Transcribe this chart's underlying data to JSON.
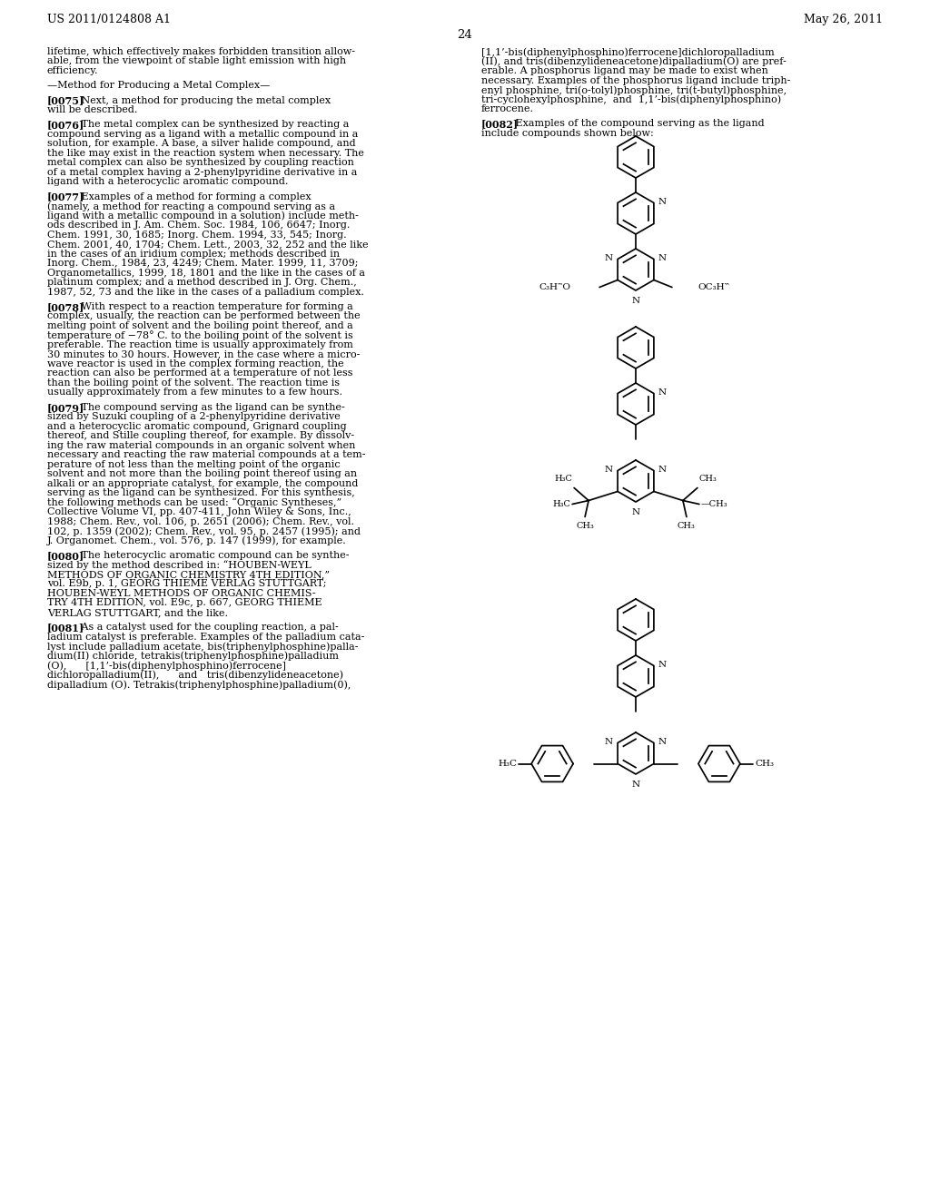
{
  "page_number": "24",
  "patent_number": "US 2011/0124808 A1",
  "patent_date": "May 26, 2011",
  "background_color": "#ffffff",
  "left_lines": [
    {
      "text": "lifetime, which effectively makes forbidden transition allow-",
      "bold": false,
      "indent": false
    },
    {
      "text": "able, from the viewpoint of stable light emission with high",
      "bold": false,
      "indent": false
    },
    {
      "text": "efficiency.",
      "bold": false,
      "indent": false
    },
    {
      "text": "",
      "bold": false,
      "indent": false
    },
    {
      "text": "—Method for Producing a Metal Complex—",
      "bold": false,
      "indent": false
    },
    {
      "text": "",
      "bold": false,
      "indent": false
    },
    {
      "text": "[0075]",
      "bold": true,
      "indent": false,
      "rest": "   Next, a method for producing the metal complex"
    },
    {
      "text": "will be described.",
      "bold": false,
      "indent": false
    },
    {
      "text": "",
      "bold": false,
      "indent": false
    },
    {
      "text": "[0076]",
      "bold": true,
      "indent": false,
      "rest": "   The metal complex can be synthesized by reacting a"
    },
    {
      "text": "compound serving as a ligand with a metallic compound in a",
      "bold": false,
      "indent": false
    },
    {
      "text": "solution, for example. A base, a silver halide compound, and",
      "bold": false,
      "indent": false
    },
    {
      "text": "the like may exist in the reaction system when necessary. The",
      "bold": false,
      "indent": false
    },
    {
      "text": "metal complex can also be synthesized by coupling reaction",
      "bold": false,
      "indent": false
    },
    {
      "text": "of a metal complex having a 2-phenylpyridine derivative in a",
      "bold": false,
      "indent": false
    },
    {
      "text": "ligand with a heterocyclic aromatic compound.",
      "bold": false,
      "indent": false
    },
    {
      "text": "",
      "bold": false,
      "indent": false
    },
    {
      "text": "[0077]",
      "bold": true,
      "indent": false,
      "rest": "   Examples of a method for forming a complex"
    },
    {
      "text": "(namely, a method for reacting a compound serving as a",
      "bold": false,
      "indent": false
    },
    {
      "text": "ligand with a metallic compound in a solution) include meth-",
      "bold": false,
      "indent": false
    },
    {
      "text": "ods described in J. Am. Chem. Soc. 1984, 106, 6647; Inorg.",
      "bold": false,
      "indent": false
    },
    {
      "text": "Chem. 1991, 30, 1685; Inorg. Chem. 1994, 33, 545; Inorg.",
      "bold": false,
      "indent": false
    },
    {
      "text": "Chem. 2001, 40, 1704; Chem. Lett., 2003, 32, 252 and the like",
      "bold": false,
      "indent": false
    },
    {
      "text": "in the cases of an iridium complex; methods described in",
      "bold": false,
      "indent": false
    },
    {
      "text": "Inorg. Chem., 1984, 23, 4249; Chem. Mater. 1999, 11, 3709;",
      "bold": false,
      "indent": false
    },
    {
      "text": "Organometallics, 1999, 18, 1801 and the like in the cases of a",
      "bold": false,
      "indent": false
    },
    {
      "text": "platinum complex; and a method described in J. Org. Chem.,",
      "bold": false,
      "indent": false
    },
    {
      "text": "1987, 52, 73 and the like in the cases of a palladium complex.",
      "bold": false,
      "indent": false
    },
    {
      "text": "",
      "bold": false,
      "indent": false
    },
    {
      "text": "[0078]",
      "bold": true,
      "indent": false,
      "rest": "   With respect to a reaction temperature for forming a"
    },
    {
      "text": "complex, usually, the reaction can be performed between the",
      "bold": false,
      "indent": false
    },
    {
      "text": "melting point of solvent and the boiling point thereof, and a",
      "bold": false,
      "indent": false
    },
    {
      "text": "temperature of −78° C. to the boiling point of the solvent is",
      "bold": false,
      "indent": false
    },
    {
      "text": "preferable. The reaction time is usually approximately from",
      "bold": false,
      "indent": false
    },
    {
      "text": "30 minutes to 30 hours. However, in the case where a micro-",
      "bold": false,
      "indent": false
    },
    {
      "text": "wave reactor is used in the complex forming reaction, the",
      "bold": false,
      "indent": false
    },
    {
      "text": "reaction can also be performed at a temperature of not less",
      "bold": false,
      "indent": false
    },
    {
      "text": "than the boiling point of the solvent. The reaction time is",
      "bold": false,
      "indent": false
    },
    {
      "text": "usually approximately from a few minutes to a few hours.",
      "bold": false,
      "indent": false
    },
    {
      "text": "",
      "bold": false,
      "indent": false
    },
    {
      "text": "[0079]",
      "bold": true,
      "indent": false,
      "rest": "   The compound serving as the ligand can be synthe-"
    },
    {
      "text": "sized by Suzuki coupling of a 2-phenylpyridine derivative",
      "bold": false,
      "indent": false
    },
    {
      "text": "and a heterocyclic aromatic compound, Grignard coupling",
      "bold": false,
      "indent": false
    },
    {
      "text": "thereof, and Stille coupling thereof, for example. By dissolv-",
      "bold": false,
      "indent": false
    },
    {
      "text": "ing the raw material compounds in an organic solvent when",
      "bold": false,
      "indent": false
    },
    {
      "text": "necessary and reacting the raw material compounds at a tem-",
      "bold": false,
      "indent": false
    },
    {
      "text": "perature of not less than the melting point of the organic",
      "bold": false,
      "indent": false
    },
    {
      "text": "solvent and not more than the boiling point thereof using an",
      "bold": false,
      "indent": false
    },
    {
      "text": "alkali or an appropriate catalyst, for example, the compound",
      "bold": false,
      "indent": false
    },
    {
      "text": "serving as the ligand can be synthesized. For this synthesis,",
      "bold": false,
      "indent": false
    },
    {
      "text": "the following methods can be used: “Organic Syntheses,”",
      "bold": false,
      "indent": false
    },
    {
      "text": "Collective Volume VI, pp. 407-411, John Wiley & Sons, Inc.,",
      "bold": false,
      "indent": false
    },
    {
      "text": "1988; Chem. Rev., vol. 106, p. 2651 (2006); Chem. Rev., vol.",
      "bold": false,
      "indent": false
    },
    {
      "text": "102, p. 1359 (2002); Chem. Rev., vol. 95, p. 2457 (1995); and",
      "bold": false,
      "indent": false
    },
    {
      "text": "J. Organomet. Chem., vol. 576, p. 147 (1999), for example.",
      "bold": false,
      "indent": false
    },
    {
      "text": "",
      "bold": false,
      "indent": false
    },
    {
      "text": "[0080]",
      "bold": true,
      "indent": false,
      "rest": "   The heterocyclic aromatic compound can be synthe-"
    },
    {
      "text": "sized by the method described in: “HOUBEN-WEYL",
      "bold": false,
      "indent": false
    },
    {
      "text": "METHODS OF ORGANIC CHEMISTRY 4TH EDITION,”",
      "bold": false,
      "indent": false
    },
    {
      "text": "vol. E9b, p. 1, GEORG THIEME VERLAG STUTTGART;",
      "bold": false,
      "indent": false
    },
    {
      "text": "HOUBEN-WEYL METHODS OF ORGANIC CHEMIS-",
      "bold": false,
      "indent": false
    },
    {
      "text": "TRY 4TH EDITION, vol. E9c, p. 667, GEORG THIEME",
      "bold": false,
      "indent": false
    },
    {
      "text": "VERLAG STUTTGART, and the like.",
      "bold": false,
      "indent": false
    },
    {
      "text": "",
      "bold": false,
      "indent": false
    },
    {
      "text": "[0081]",
      "bold": true,
      "indent": false,
      "rest": "   As a catalyst used for the coupling reaction, a pal-"
    },
    {
      "text": "ladium catalyst is preferable. Examples of the palladium cata-",
      "bold": false,
      "indent": false
    },
    {
      "text": "lyst include palladium acetate, bis(triphenylphosphine)palla-",
      "bold": false,
      "indent": false
    },
    {
      "text": "dium(II) chloride, tetrakis(triphenylphosphine)palladium",
      "bold": false,
      "indent": false
    },
    {
      "text": "(O),      [1,1’-bis(diphenylphosphino)ferrocene]",
      "bold": false,
      "indent": false
    },
    {
      "text": "dichloropalladium(II),      and   tris(dibenzylideneacetone)",
      "bold": false,
      "indent": false
    },
    {
      "text": "dipalladium (O). Tetrakis(triphenylphosphine)palladium(0),",
      "bold": false,
      "indent": false
    }
  ],
  "right_lines": [
    {
      "text": "[1,1’-bis(diphenylphosphino)ferrocene]dichloropalladium",
      "bold": false
    },
    {
      "text": "(II), and tris(dibenzylideneacetone)dipalladium(O) are pref-",
      "bold": false
    },
    {
      "text": "erable. A phosphorus ligand may be made to exist when",
      "bold": false
    },
    {
      "text": "necessary. Examples of the phosphorus ligand include triph-",
      "bold": false
    },
    {
      "text": "enyl phosphine, tri(o-tolyl)phosphine, tri(t-butyl)phosphine,",
      "bold": false
    },
    {
      "text": "tri-cyclohexylphosphine,  and  1,1’-bis(diphenylphosphino)",
      "bold": false
    },
    {
      "text": "ferrocene.",
      "bold": false
    },
    {
      "text": "",
      "bold": false
    },
    {
      "text": "[0082]",
      "bold": true,
      "rest": "   Examples of the compound serving as the ligand"
    },
    {
      "text": "include compounds shown below:",
      "bold": false
    }
  ]
}
